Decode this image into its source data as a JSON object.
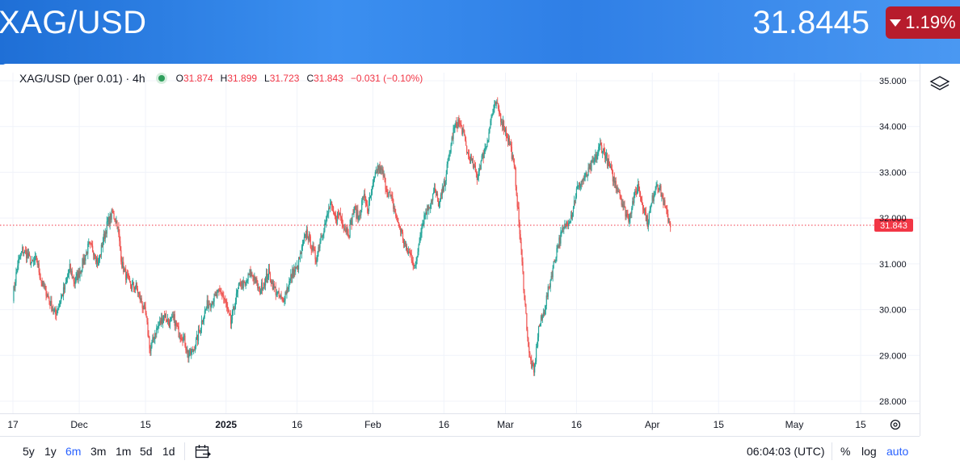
{
  "header": {
    "symbol": "XAG/USD",
    "price": "31.8445",
    "change": "1.19%",
    "change_direction": "down",
    "change_color": "#b71c2c"
  },
  "legend": {
    "title": "XAG/USD (per 0.01) · 4h",
    "open_key": "O",
    "open": "31.874",
    "high_key": "H",
    "high": "31.899",
    "low_key": "L",
    "low": "31.723",
    "close_key": "C",
    "close": "31.843",
    "change": "−0.031 (−0.10%)"
  },
  "timeframes": [
    "5y",
    "1y",
    "6m",
    "3m",
    "1m",
    "5d",
    "1d"
  ],
  "active_timeframe": "6m",
  "clock": "06:04:03 (UTC)",
  "options": {
    "percent": "%",
    "log": "log",
    "auto": "auto"
  },
  "colors": {
    "up": "#26a69a",
    "down": "#ef5350",
    "price_line": "#f23645",
    "accent": "#2962ff"
  },
  "icons": [
    "layers-icon",
    "calendar-range-icon",
    "gear-icon"
  ],
  "chart_data": {
    "type": "candlestick",
    "interval": "4h",
    "y_ticks": [
      "35.000",
      "34.000",
      "33.000",
      "32.000",
      "31.000",
      "30.000",
      "29.000",
      "28.000"
    ],
    "ylim": [
      27.6,
      35.4
    ],
    "grid": true,
    "current_price_label": "31.843",
    "x_ticks": [
      {
        "label": "17",
        "d": 0
      },
      {
        "label": "Dec",
        "d": 14
      },
      {
        "label": "15",
        "d": 28
      },
      {
        "label": "2025",
        "d": 45
      },
      {
        "label": "16",
        "d": 60
      },
      {
        "label": "Feb",
        "d": 76
      },
      {
        "label": "16",
        "d": 91
      },
      {
        "label": "Mar",
        "d": 104
      },
      {
        "label": "16",
        "d": 119
      },
      {
        "label": "Apr",
        "d": 135
      },
      {
        "label": "15",
        "d": 149
      },
      {
        "label": "May",
        "d": 165
      },
      {
        "label": "15",
        "d": 179
      }
    ],
    "xlim_days": [
      -0.5,
      180
    ],
    "anchors": [
      [
        0,
        30.3
      ],
      [
        1,
        31.0
      ],
      [
        2,
        31.3
      ],
      [
        3,
        31.2
      ],
      [
        4,
        31.0
      ],
      [
        5,
        31.1
      ],
      [
        6,
        30.6
      ],
      [
        7,
        30.4
      ],
      [
        8,
        30.1
      ],
      [
        9,
        29.9
      ],
      [
        10,
        30.2
      ],
      [
        11,
        30.5
      ],
      [
        12,
        30.9
      ],
      [
        13,
        30.6
      ],
      [
        14,
        30.8
      ],
      [
        15,
        31.1
      ],
      [
        16,
        31.4
      ],
      [
        17,
        31.3
      ],
      [
        18,
        31.0
      ],
      [
        19,
        31.5
      ],
      [
        20,
        31.9
      ],
      [
        21,
        32.1
      ],
      [
        22,
        31.9
      ],
      [
        23,
        31.0
      ],
      [
        24,
        30.7
      ],
      [
        25,
        30.5
      ],
      [
        26,
        30.5
      ],
      [
        27,
        30.2
      ],
      [
        28,
        29.9
      ],
      [
        29,
        29.1
      ],
      [
        30,
        29.5
      ],
      [
        31,
        29.7
      ],
      [
        32,
        29.9
      ],
      [
        33,
        29.7
      ],
      [
        34,
        29.8
      ],
      [
        35,
        29.5
      ],
      [
        36,
        29.4
      ],
      [
        37,
        29.0
      ],
      [
        38,
        29.1
      ],
      [
        39,
        29.4
      ],
      [
        40,
        29.8
      ],
      [
        41,
        30.1
      ],
      [
        42,
        30.2
      ],
      [
        43,
        30.3
      ],
      [
        44,
        30.4
      ],
      [
        45,
        30.1
      ],
      [
        46,
        29.7
      ],
      [
        47,
        30.2
      ],
      [
        48,
        30.6
      ],
      [
        49,
        30.5
      ],
      [
        50,
        30.8
      ],
      [
        51,
        30.7
      ],
      [
        52,
        30.4
      ],
      [
        53,
        30.6
      ],
      [
        54,
        30.8
      ],
      [
        55,
        30.5
      ],
      [
        56,
        30.3
      ],
      [
        57,
        30.2
      ],
      [
        58,
        30.5
      ],
      [
        59,
        30.8
      ],
      [
        60,
        30.9
      ],
      [
        61,
        31.3
      ],
      [
        62,
        31.7
      ],
      [
        63,
        31.4
      ],
      [
        64,
        31.1
      ],
      [
        65,
        31.6
      ],
      [
        66,
        31.9
      ],
      [
        67,
        32.3
      ],
      [
        68,
        32.0
      ],
      [
        69,
        32.1
      ],
      [
        70,
        31.8
      ],
      [
        71,
        31.7
      ],
      [
        72,
        32.2
      ],
      [
        73,
        32.0
      ],
      [
        74,
        32.5
      ],
      [
        75,
        32.2
      ],
      [
        76,
        32.7
      ],
      [
        77,
        33.1
      ],
      [
        78,
        33.0
      ],
      [
        79,
        32.6
      ],
      [
        80,
        32.4
      ],
      [
        81,
        32.0
      ],
      [
        82,
        31.7
      ],
      [
        83,
        31.3
      ],
      [
        84,
        31.2
      ],
      [
        85,
        30.9
      ],
      [
        86,
        31.7
      ],
      [
        87,
        32.1
      ],
      [
        88,
        32.3
      ],
      [
        89,
        32.6
      ],
      [
        90,
        32.3
      ],
      [
        91,
        32.7
      ],
      [
        92,
        33.3
      ],
      [
        93,
        33.9
      ],
      [
        94,
        34.1
      ],
      [
        95,
        33.9
      ],
      [
        96,
        33.4
      ],
      [
        97,
        33.2
      ],
      [
        98,
        32.9
      ],
      [
        99,
        33.3
      ],
      [
        100,
        33.6
      ],
      [
        101,
        34.2
      ],
      [
        102,
        34.5
      ],
      [
        103,
        34.2
      ],
      [
        104,
        33.9
      ],
      [
        105,
        33.6
      ],
      [
        106,
        33.0
      ],
      [
        107,
        31.7
      ],
      [
        108,
        30.3
      ],
      [
        109,
        29.0
      ],
      [
        110,
        28.6
      ],
      [
        111,
        29.6
      ],
      [
        112,
        29.9
      ],
      [
        113,
        30.4
      ],
      [
        114,
        30.9
      ],
      [
        115,
        31.4
      ],
      [
        116,
        31.7
      ],
      [
        117,
        31.9
      ],
      [
        118,
        32.1
      ],
      [
        119,
        32.6
      ],
      [
        120,
        32.8
      ],
      [
        121,
        32.9
      ],
      [
        122,
        33.1
      ],
      [
        123,
        33.3
      ],
      [
        124,
        33.6
      ],
      [
        125,
        33.4
      ],
      [
        126,
        33.1
      ],
      [
        127,
        32.8
      ],
      [
        128,
        32.6
      ],
      [
        129,
        32.2
      ],
      [
        130,
        32.0
      ],
      [
        131,
        32.4
      ],
      [
        132,
        32.7
      ],
      [
        133,
        32.3
      ],
      [
        134,
        31.9
      ],
      [
        135,
        32.4
      ],
      [
        136,
        32.8
      ],
      [
        137,
        32.5
      ],
      [
        138,
        32.1
      ],
      [
        139,
        31.8
      ]
    ],
    "series": [
      {
        "name": "XAG/USD (per 0.01)"
      }
    ]
  }
}
